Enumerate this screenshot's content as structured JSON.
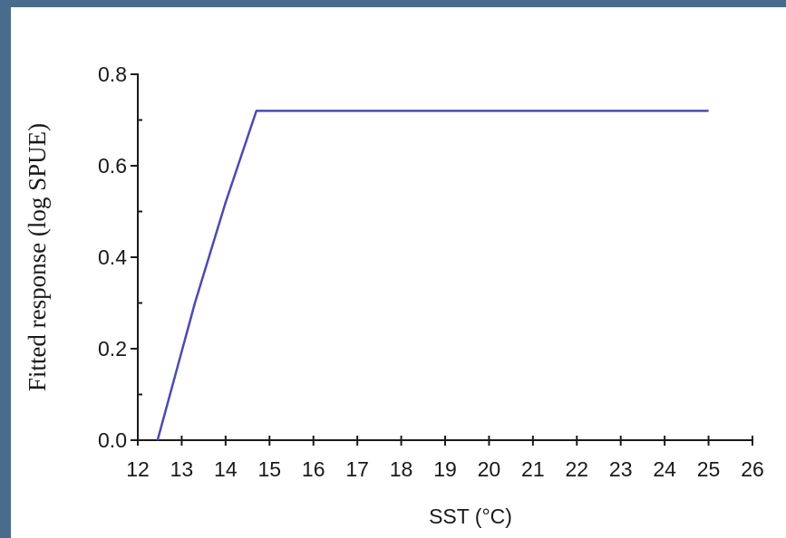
{
  "frame": {
    "border_color": "#4a6c8c"
  },
  "chart_data": {
    "type": "line",
    "xlabel": "SST (°C)",
    "ylabel": "Fitted response (log SPUE)",
    "xlim": [
      12,
      26
    ],
    "ylim": [
      0,
      0.8
    ],
    "x_ticks": [
      12,
      13,
      14,
      15,
      16,
      17,
      18,
      19,
      20,
      21,
      22,
      23,
      24,
      25,
      26
    ],
    "x_tick_labels": [
      "12",
      "13",
      "14",
      "15",
      "16",
      "17",
      "18",
      "19",
      "20",
      "21",
      "22",
      "23",
      "24",
      "25",
      "26"
    ],
    "y_ticks": [
      0,
      0.2,
      0.4,
      0.6,
      0.8
    ],
    "y_tick_labels": [
      "0.0",
      "0.2",
      "0.4",
      "0.6",
      "0.8"
    ],
    "grid": false,
    "line_color": "#4b4bb0",
    "series": [
      {
        "x": [
          12.45,
          13.3,
          14.0,
          14.7,
          25.0
        ],
        "y": [
          0.0,
          0.3,
          0.52,
          0.72,
          0.72
        ]
      }
    ]
  }
}
